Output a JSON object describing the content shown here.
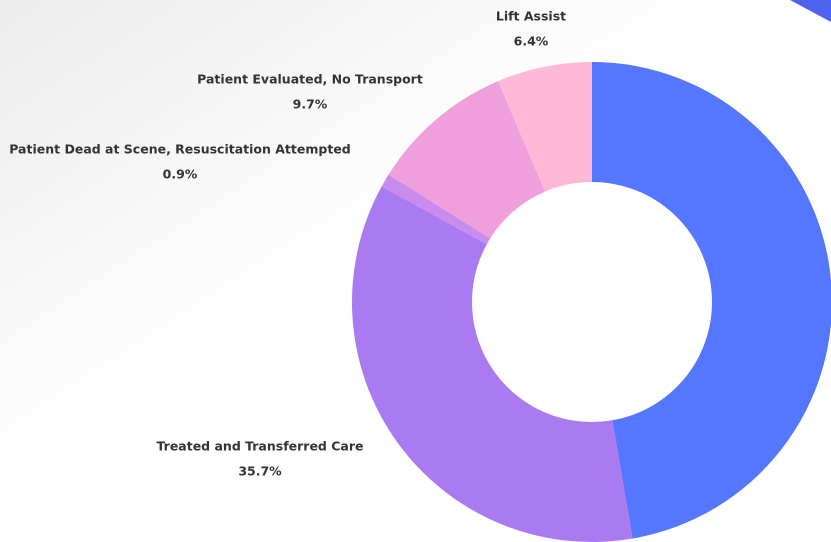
{
  "chart_data": {
    "type": "donut",
    "categories": [
      null,
      "Treated and Transferred Care",
      "Patient Dead at Scene, Resuscitation Attempted",
      "Patient Evaluated, No Transport",
      "Lift Assist"
    ],
    "values": [
      47.3,
      35.7,
      0.9,
      9.7,
      6.4
    ],
    "value_labels": [
      null,
      "35.7%",
      "0.9%",
      "9.7%",
      "6.4%"
    ],
    "colors": [
      "#5577ff",
      "#a97af0",
      "#c98cec",
      "#ef9fdb",
      "#ffb9d6"
    ]
  }
}
